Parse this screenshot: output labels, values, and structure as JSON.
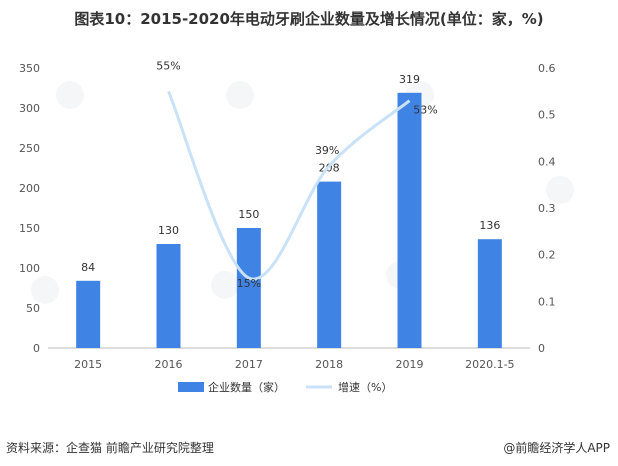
{
  "title": "图表10：2015-2020年电动牙刷企业数量及增长情况(单位：家，%)",
  "footer": {
    "source": "资料来源：企查猫 前瞻产业研究院整理",
    "brand": "@前瞻经济学人APP"
  },
  "colors": {
    "bar": "#3f84e5",
    "line": "#c9e2f7",
    "axis": "#bbbbbb",
    "text": "#333333"
  },
  "chart_data": {
    "type": "bar",
    "categories": [
      "2015",
      "2016",
      "2017",
      "2018",
      "2019",
      "2020.1-5"
    ],
    "series": [
      {
        "name": "企业数量（家）",
        "type": "bar",
        "axis": "left",
        "values": [
          84,
          130,
          150,
          208,
          319,
          136
        ],
        "labels": [
          "84",
          "130",
          "150",
          "208",
          "319",
          "136"
        ]
      },
      {
        "name": "增速（%）",
        "type": "line",
        "axis": "right",
        "smooth": true,
        "values": [
          null,
          0.55,
          0.15,
          0.39,
          0.53,
          null
        ],
        "labels": [
          "",
          "55%",
          "15%",
          "39%",
          "53%",
          ""
        ]
      }
    ],
    "y_left": {
      "min": 0,
      "max": 350,
      "ticks": [
        "0",
        "50",
        "100",
        "150",
        "200",
        "250",
        "300",
        "350"
      ]
    },
    "y_right": {
      "min": 0,
      "max": 0.6,
      "ticks": [
        "0",
        "0.1",
        "0.2",
        "0.3",
        "0.4",
        "0.5",
        "0.6"
      ]
    },
    "legend_position": "bottom",
    "grid": false
  }
}
